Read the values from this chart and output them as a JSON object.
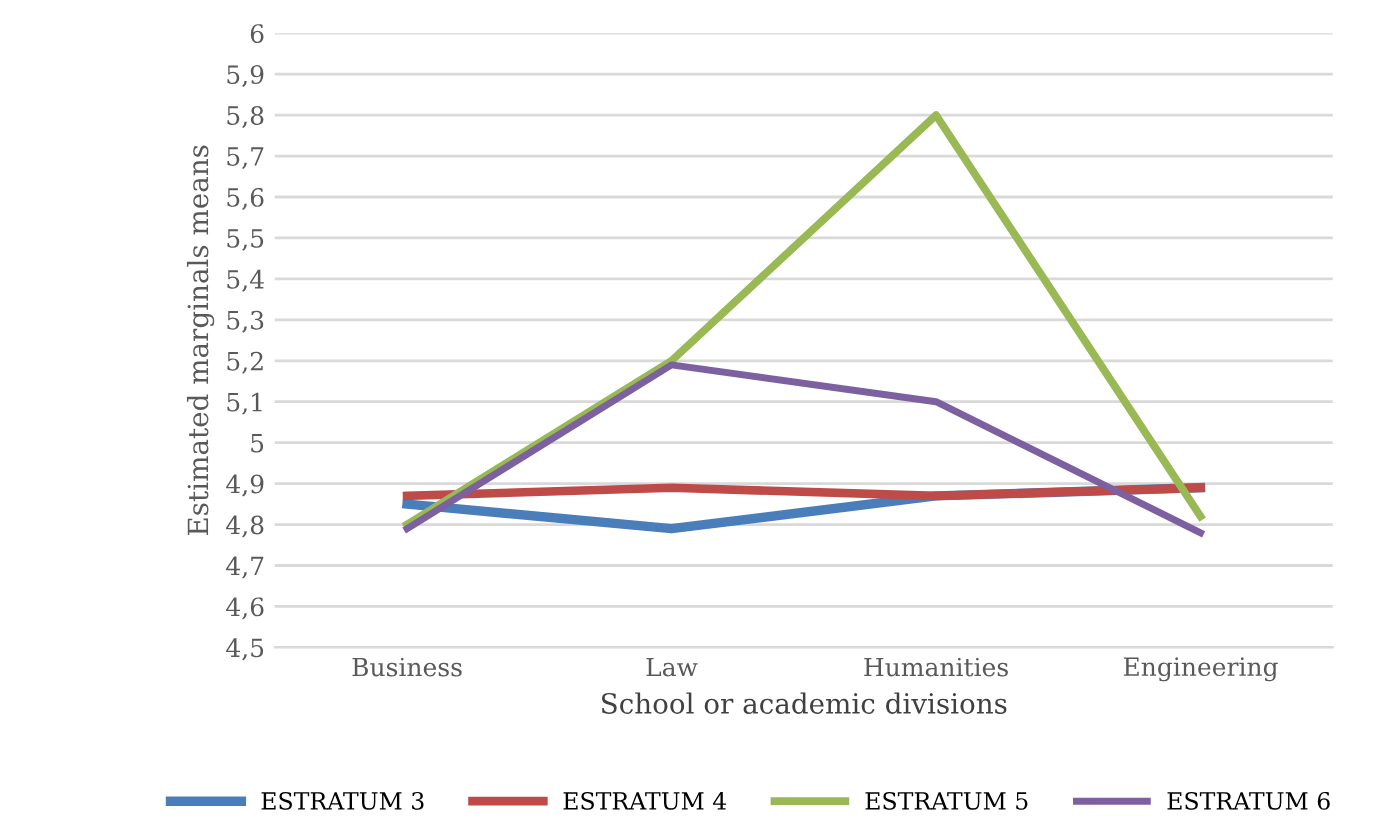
{
  "chart_data": {
    "type": "line",
    "xlabel": "School or academic divisions",
    "ylabel": "Estimated marginals means",
    "categories": [
      "Business",
      "Law",
      "Humanities",
      "Engineering"
    ],
    "series": [
      {
        "name": "ESTRATUM 3",
        "color": "#4a7ebb",
        "values": [
          4.85,
          4.79,
          4.87,
          4.89
        ]
      },
      {
        "name": "ESTRATUM 4",
        "color": "#be4b48",
        "values": [
          4.87,
          4.89,
          4.87,
          4.89
        ]
      },
      {
        "name": "ESTRATUM 5",
        "color": "#98b954",
        "values": [
          4.8,
          5.2,
          5.8,
          4.82
        ]
      },
      {
        "name": "ESTRATUM 6",
        "color": "#7d60a0",
        "values": [
          4.79,
          5.19,
          5.1,
          4.78
        ]
      }
    ],
    "ylim": [
      4.5,
      6
    ],
    "yticks": [
      {
        "value": 4.5,
        "label": "4,5"
      },
      {
        "value": 4.6,
        "label": "4,6"
      },
      {
        "value": 4.7,
        "label": "4,7"
      },
      {
        "value": 4.8,
        "label": "4,8"
      },
      {
        "value": 4.9,
        "label": "4,9"
      },
      5,
      {
        "value": 5.1,
        "label": "5,1"
      },
      {
        "value": 5.2,
        "label": "5,2"
      },
      {
        "value": 5.3,
        "label": "5,3"
      },
      {
        "value": 5.4,
        "label": "5,4"
      },
      {
        "value": 5.5,
        "label": "5,5"
      },
      {
        "value": 5.6,
        "label": "5,6"
      },
      {
        "value": 5.7,
        "label": "5,7"
      },
      {
        "value": 5.8,
        "label": "5,8"
      },
      {
        "value": 5.9,
        "label": "5,9"
      },
      6
    ],
    "grid": "y",
    "legend": "bottom",
    "marker": "none",
    "line_style": "solid"
  }
}
